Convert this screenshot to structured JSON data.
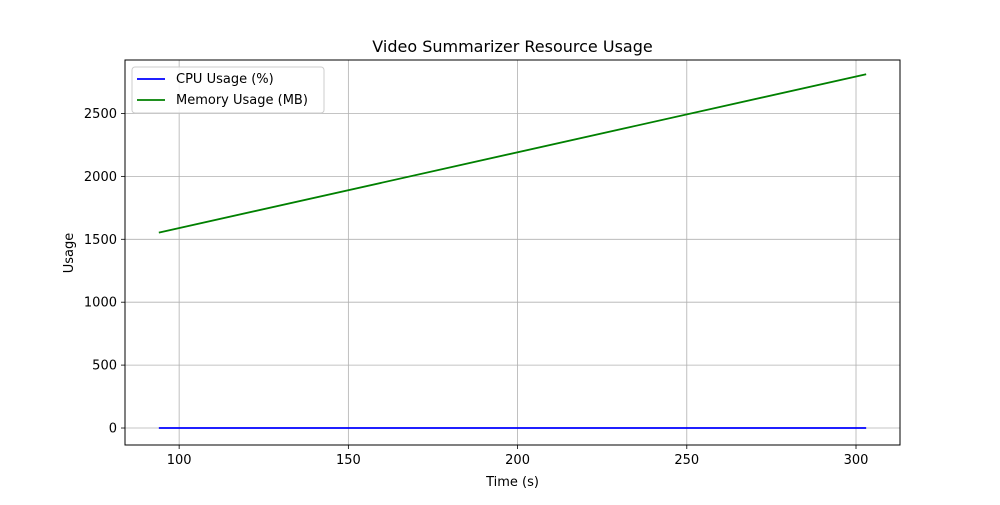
{
  "chart_data": {
    "type": "line",
    "title": "Video Summarizer Resource Usage",
    "xlabel": "Time (s)",
    "ylabel": "Usage",
    "xlim": [
      84,
      313
    ],
    "ylim": [
      -135,
      2925
    ],
    "xticks": [
      100,
      150,
      200,
      250,
      300
    ],
    "yticks": [
      0,
      500,
      1000,
      1500,
      2000,
      2500
    ],
    "grid": true,
    "legend_position": "upper left",
    "series": [
      {
        "name": "CPU Usage (%)",
        "color": "#0000ff",
        "x": [
          94,
          303
        ],
        "values": [
          0,
          0
        ]
      },
      {
        "name": "Memory Usage (MB)",
        "color": "#008000",
        "x": [
          94,
          303
        ],
        "values": [
          1553,
          2812
        ]
      }
    ]
  }
}
